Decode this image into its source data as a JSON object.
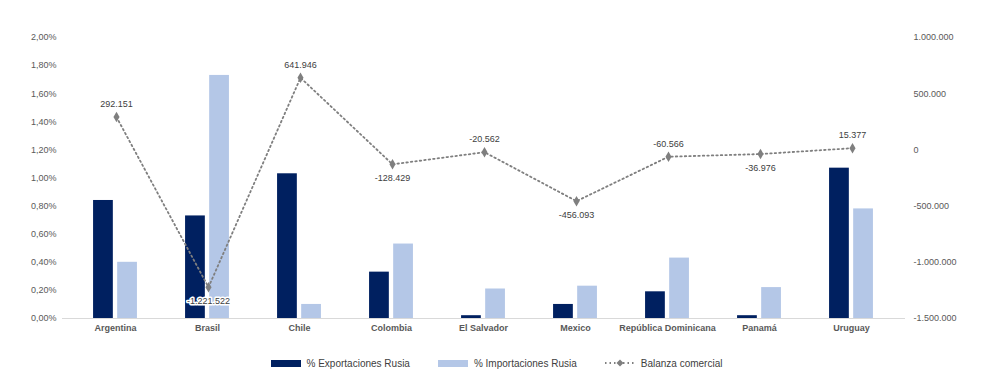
{
  "chart_data": {
    "type": "bar",
    "categories": [
      "Argentina",
      "Brasil",
      "Chile",
      "Colombia",
      "El Salvador",
      "Mexico",
      "República Dominicana",
      "Panamá",
      "Uruguay"
    ],
    "series": [
      {
        "name": "% Exportaciones Rusia",
        "type": "bar",
        "color": "#002060",
        "values": [
          0.84,
          0.73,
          1.03,
          0.33,
          0.02,
          0.1,
          0.19,
          0.02,
          1.07
        ]
      },
      {
        "name": "% Importaciones Rusia",
        "type": "bar",
        "color": "#b4c7e7",
        "values": [
          0.4,
          1.73,
          0.1,
          0.53,
          0.21,
          0.23,
          0.43,
          0.22,
          0.78
        ]
      },
      {
        "name": "Balanza comercial",
        "type": "line",
        "axis": "y2",
        "color": "#7f7f7f",
        "line_style": "dotted",
        "marker": "diamond",
        "data_labels": true,
        "values": [
          292151,
          -1221522,
          641946,
          -128429,
          -20562,
          -456093,
          -60566,
          -36976,
          15377
        ],
        "value_labels": [
          "292.151",
          "-1.221.522",
          "641.946",
          "-128.429",
          "-20.562",
          "-456.093",
          "-60.566",
          "-36.976",
          "15.377"
        ]
      }
    ],
    "ylim": [
      0,
      2
    ],
    "yticks": [
      {
        "value": 0,
        "label": "0,00%"
      },
      {
        "value": 0.2,
        "label": "0,20%"
      },
      {
        "value": 0.4,
        "label": "0,40%"
      },
      {
        "value": 0.6,
        "label": "0,60%"
      },
      {
        "value": 0.8,
        "label": "0,80%"
      },
      {
        "value": 1,
        "label": "1,00%"
      },
      {
        "value": 1.2,
        "label": "1,20%"
      },
      {
        "value": 1.4,
        "label": "1,40%"
      },
      {
        "value": 1.6,
        "label": "1,60%"
      },
      {
        "value": 1.8,
        "label": "1,80%"
      },
      {
        "value": 2,
        "label": "2,00%"
      }
    ],
    "y2lim": [
      -1500000,
      1000000
    ],
    "y2ticks": [
      {
        "value": -1500000,
        "label": "-1.500.000"
      },
      {
        "value": -1000000,
        "label": "-1.000.000"
      },
      {
        "value": -500000,
        "label": "-500.000"
      },
      0,
      {
        "value": 500000,
        "label": "500.000"
      },
      {
        "value": 1000000,
        "label": "1.000.000"
      }
    ],
    "grid": false,
    "legend": "bottom"
  }
}
